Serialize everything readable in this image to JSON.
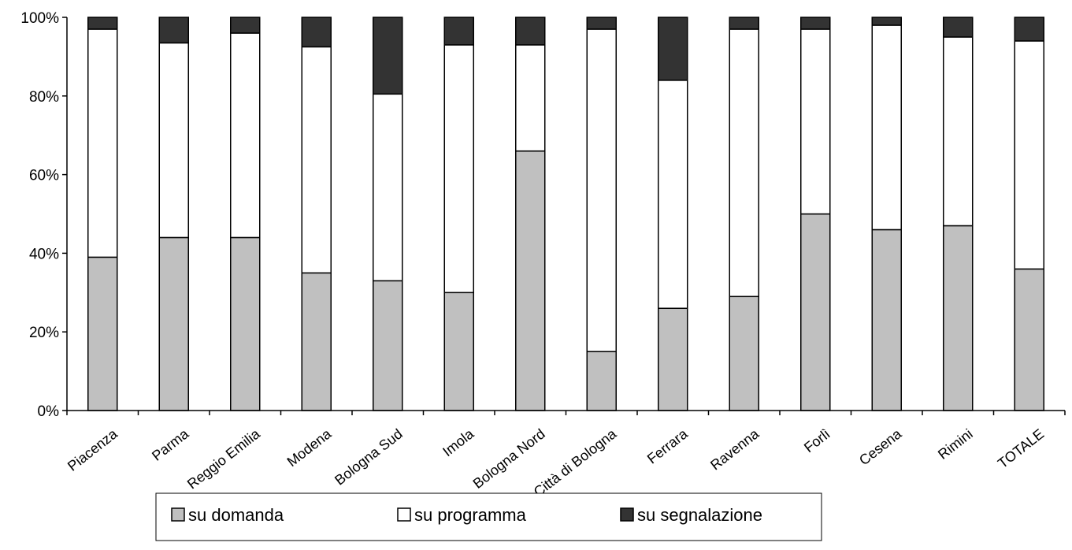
{
  "chart_data": {
    "type": "bar",
    "stacked": true,
    "percent_stacked": true,
    "title": "",
    "xlabel": "",
    "ylabel": "",
    "ylim": [
      0,
      100
    ],
    "y_tick_labels": [
      "0%",
      "20%",
      "40%",
      "60%",
      "80%",
      "100%"
    ],
    "y_ticks": [
      0,
      20,
      40,
      60,
      80,
      100
    ],
    "grid": false,
    "legend_position": "bottom",
    "categories": [
      "Piacenza",
      "Parma",
      "Reggio Emilia",
      "Modena",
      "Bologna Sud",
      "Imola",
      "Bologna Nord",
      "Città di Bologna",
      "Ferrara",
      "Ravenna",
      "Forlì",
      "Cesena",
      "Rimini",
      "TOTALE"
    ],
    "series": [
      {
        "name": "su domanda",
        "color": "#c0c0c0",
        "values": [
          39,
          44,
          44,
          35,
          33,
          30,
          66,
          15,
          26,
          29,
          50,
          46,
          47,
          36
        ]
      },
      {
        "name": "su programma",
        "color": "#ffffff",
        "values": [
          58,
          49.5,
          52,
          57.5,
          47.5,
          63,
          27,
          82,
          58,
          68,
          47,
          52,
          48,
          58
        ]
      },
      {
        "name": "su segnalazione",
        "color": "#333333",
        "values": [
          3,
          6.5,
          4,
          7.5,
          19.5,
          7,
          7,
          3,
          16,
          3,
          3,
          2,
          5,
          6
        ]
      }
    ]
  }
}
